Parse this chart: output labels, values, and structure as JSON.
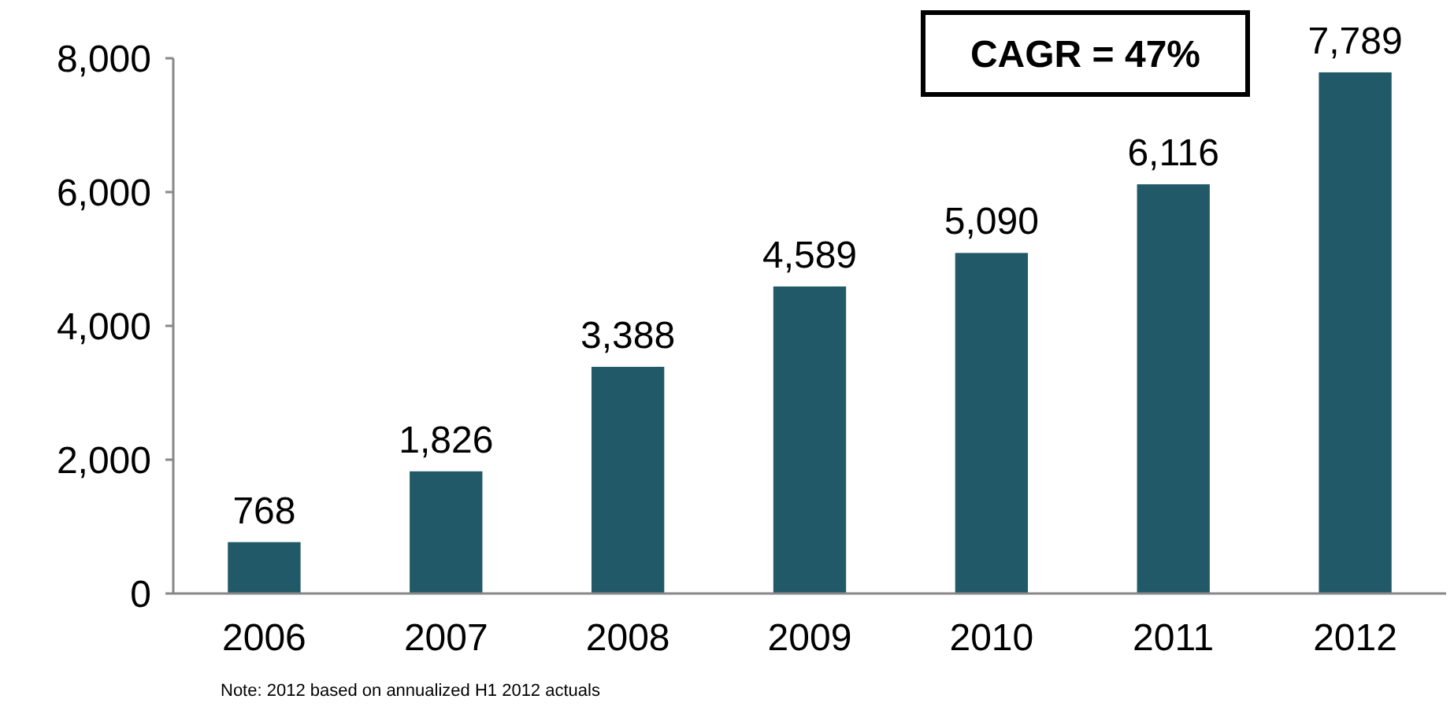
{
  "chart_data": {
    "type": "bar",
    "categories": [
      "2006",
      "2007",
      "2008",
      "2009",
      "2010",
      "2011",
      "2012"
    ],
    "values": [
      768,
      1826,
      3388,
      4589,
      5090,
      6116,
      7789
    ],
    "color": "#215968",
    "ylim": [
      0,
      8000
    ],
    "yticks": [
      {
        "value": 0,
        "label": "0"
      },
      {
        "value": 2000,
        "label": "2,000"
      },
      {
        "value": 4000,
        "label": "4,000"
      },
      {
        "value": 6000,
        "label": "6,000"
      },
      {
        "value": 8000,
        "label": "8,000"
      }
    ],
    "value_labels": [
      "768",
      "1,826",
      "3,388",
      "4,589",
      "5,090",
      "6,116",
      "7,789"
    ],
    "grid": false,
    "annotations": [
      "CAGR = 47%",
      "Note:  2012 based on annualized H1 2012 actuals"
    ]
  }
}
